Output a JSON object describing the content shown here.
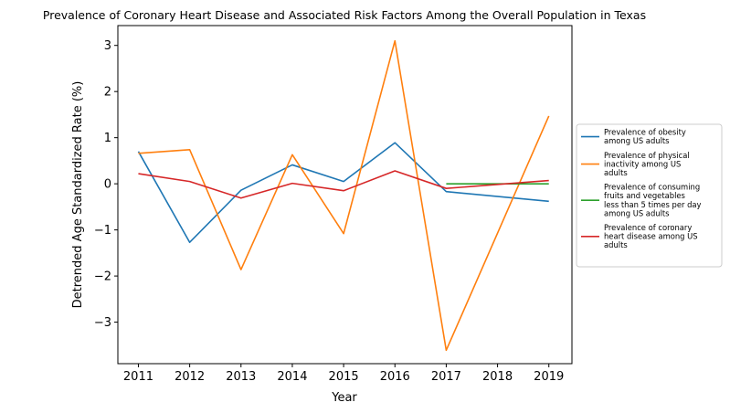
{
  "chart_data": {
    "type": "line",
    "title": "Prevalence of Coronary Heart Disease and Associated Risk Factors Among the Overall Population in Texas",
    "xlabel": "Year",
    "ylabel": "Detrended Age Standardized Rate (%)",
    "xlim": [
      2010.6,
      2019.45
    ],
    "ylim": [
      -3.9,
      3.43
    ],
    "xticks": [
      2011,
      2012,
      2013,
      2014,
      2015,
      2016,
      2017,
      2018,
      2019
    ],
    "yticks": [
      -3,
      -2,
      -1,
      0,
      1,
      2,
      3
    ],
    "ytick_labels": [
      "−3",
      "−2",
      "−1",
      "0",
      "1",
      "2",
      "3"
    ],
    "grid": false,
    "legend_position": "center-right-outside",
    "series": [
      {
        "name": "Prevalence of obesity among US adults",
        "legend_lines": [
          "Prevalence of obesity",
          "among US adults"
        ],
        "color": "#1f77b4",
        "x": [
          2011,
          2012,
          2013,
          2014,
          2015,
          2016,
          2017,
          2019
        ],
        "y": [
          0.7,
          -1.27,
          -0.14,
          0.41,
          0.05,
          0.89,
          -0.17,
          -0.38
        ]
      },
      {
        "name": "Prevalence of physical inactivity among US adults",
        "legend_lines": [
          "Prevalence of physical",
          "inactivity among US",
          "adults"
        ],
        "color": "#ff7f0e",
        "x": [
          2011,
          2012,
          2013,
          2014,
          2015,
          2016,
          2017,
          2019
        ],
        "y": [
          0.66,
          0.74,
          -1.86,
          0.63,
          -1.08,
          3.1,
          -3.61,
          1.47
        ]
      },
      {
        "name": "Prevalence of consuming fruits and vegetables less than 5 times per day among US adults",
        "legend_lines": [
          "Prevalence of consuming",
          "fruits and vegetables",
          "less than 5 times per day",
          "among US adults"
        ],
        "color": "#2ca02c",
        "x": [
          2017,
          2019
        ],
        "y": [
          0.0,
          0.0
        ]
      },
      {
        "name": "Prevalence of coronary heart disease among US adults",
        "legend_lines": [
          "Prevalence of coronary",
          "heart disease among US",
          "adults"
        ],
        "color": "#d62728",
        "x": [
          2011,
          2012,
          2013,
          2014,
          2015,
          2016,
          2017,
          2019
        ],
        "y": [
          0.22,
          0.05,
          -0.31,
          0.01,
          -0.15,
          0.28,
          -0.1,
          0.07
        ]
      }
    ]
  }
}
